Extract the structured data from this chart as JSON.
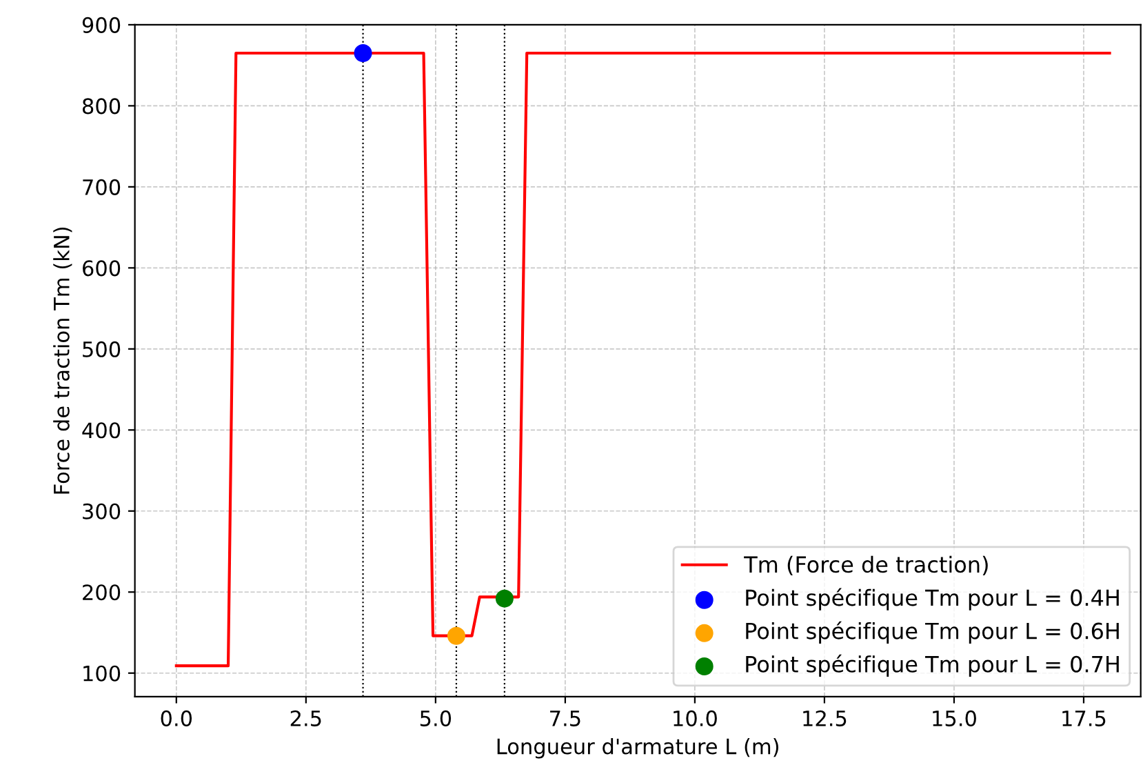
{
  "chart_data": {
    "type": "line",
    "xlabel": "Longueur d'armature L (m)",
    "ylabel": "Force de traction Tm (kN)",
    "xlim": [
      -0.8,
      18.6
    ],
    "ylim": [
      71,
      900
    ],
    "xticks": [
      {
        "value": 0,
        "label": "0.0"
      },
      {
        "value": 2.5,
        "label": "2.5"
      },
      {
        "value": 5,
        "label": "5.0"
      },
      {
        "value": 7.5,
        "label": "7.5"
      },
      {
        "value": 10,
        "label": "10.0"
      },
      {
        "value": 12.5,
        "label": "12.5"
      },
      {
        "value": 15,
        "label": "15.0"
      },
      {
        "value": 17.5,
        "label": "17.5"
      }
    ],
    "yticks": [
      100,
      200,
      300,
      400,
      500,
      600,
      700,
      800,
      900
    ],
    "grid": true,
    "legend": "bottom right",
    "series": [
      {
        "name": "Tm (Force de traction)",
        "color": "#ff0000",
        "x": [
          0,
          1.0,
          1.15,
          4.77,
          4.95,
          5.7,
          5.85,
          6.6,
          6.76,
          18
        ],
        "values": [
          109,
          109,
          865,
          865,
          146,
          146,
          194,
          194,
          865,
          865
        ]
      },
      {
        "name": "Point spécifique Tm pour L = 0.4H",
        "type": "scatter",
        "color": "#0000ff",
        "x": [
          3.6
        ],
        "values": [
          865
        ]
      },
      {
        "name": "Point spécifique Tm pour L = 0.6H",
        "type": "scatter",
        "color": "#ffa500",
        "x": [
          5.4
        ],
        "values": [
          146
        ]
      },
      {
        "name": "Point spécifique Tm pour L = 0.7H",
        "type": "scatter",
        "color": "#008000",
        "x": [
          6.33
        ],
        "values": [
          192
        ]
      }
    ],
    "ref_lines": [
      {
        "axis": "x",
        "value": 3.6,
        "color": "#000000",
        "line_style": "dotted"
      },
      {
        "axis": "x",
        "value": 5.4,
        "color": "#000000",
        "line_style": "dotted"
      },
      {
        "axis": "x",
        "value": 6.33,
        "color": "#000000",
        "line_style": "dotted"
      }
    ]
  }
}
